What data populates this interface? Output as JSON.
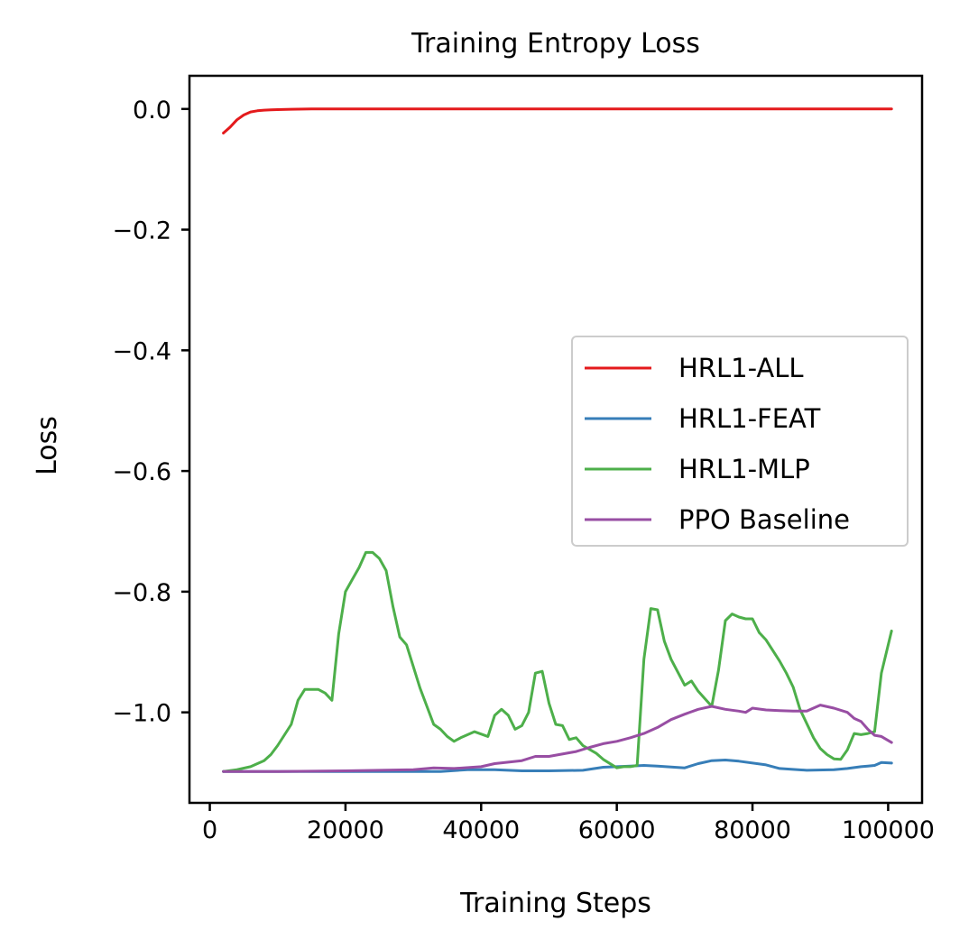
{
  "chart_data": {
    "type": "line",
    "title": "Training Entropy Loss",
    "xlabel": "Training Steps",
    "ylabel": "Loss",
    "xlim": [
      -3000,
      105000
    ],
    "ylim": [
      -1.15,
      0.055
    ],
    "xticks": [
      0,
      20000,
      40000,
      60000,
      80000,
      100000
    ],
    "xtick_labels": [
      "0",
      "20000",
      "40000",
      "60000",
      "80000",
      "100000"
    ],
    "yticks": [
      0.0,
      -0.2,
      -0.4,
      -0.6,
      -0.8,
      -1.0
    ],
    "ytick_labels": [
      "0.0",
      "−0.2",
      "−0.4",
      "−0.6",
      "−0.8",
      "−1.0"
    ],
    "grid": false,
    "legend_position": "center-right",
    "series": [
      {
        "name": "HRL1-ALL",
        "color": "#e41a1c",
        "x": [
          2000,
          3000,
          4000,
          5000,
          6000,
          7000,
          8000,
          9000,
          10000,
          12000,
          15000,
          20000,
          40000,
          60000,
          80000,
          100500
        ],
        "y": [
          -0.04,
          -0.03,
          -0.018,
          -0.01,
          -0.005,
          -0.003,
          -0.002,
          -0.0015,
          -0.001,
          -0.0005,
          0.0,
          0.0,
          0.0,
          0.0,
          0.0,
          0.0
        ]
      },
      {
        "name": "HRL1-FEAT",
        "color": "#377eb8",
        "x": [
          2000,
          10000,
          20000,
          30000,
          34000,
          38000,
          42000,
          46000,
          50000,
          55000,
          58000,
          62000,
          64000,
          66000,
          70000,
          72000,
          74000,
          76000,
          78000,
          82000,
          84000,
          88000,
          92000,
          94000,
          96000,
          97000,
          98000,
          99000,
          100500
        ],
        "y": [
          -1.098,
          -1.098,
          -1.098,
          -1.098,
          -1.098,
          -1.095,
          -1.095,
          -1.097,
          -1.097,
          -1.096,
          -1.091,
          -1.089,
          -1.088,
          -1.089,
          -1.092,
          -1.085,
          -1.08,
          -1.079,
          -1.081,
          -1.087,
          -1.093,
          -1.096,
          -1.095,
          -1.093,
          -1.09,
          -1.089,
          -1.088,
          -1.083,
          -1.084
        ]
      },
      {
        "name": "HRL1-MLP",
        "color": "#4daf4a",
        "x": [
          2000,
          4000,
          6000,
          8000,
          9000,
          10000,
          12000,
          13000,
          14000,
          16000,
          17000,
          18000,
          19000,
          20000,
          21000,
          22000,
          23000,
          24000,
          25000,
          26000,
          27000,
          28000,
          29000,
          31000,
          33000,
          34000,
          35000,
          36000,
          37000,
          39000,
          41000,
          42000,
          43000,
          44000,
          45000,
          46000,
          47000,
          48000,
          49000,
          50000,
          51000,
          52000,
          53000,
          54000,
          55000,
          57000,
          58000,
          60000,
          61000,
          62000,
          63000,
          64000,
          65000,
          66000,
          67000,
          68000,
          70000,
          71000,
          72000,
          74000,
          75000,
          76000,
          77000,
          78000,
          79000,
          80000,
          81000,
          82000,
          84000,
          85000,
          86000,
          87000,
          89000,
          90000,
          91000,
          92000,
          93000,
          94000,
          95000,
          96000,
          97000,
          98000,
          99000,
          100500
        ],
        "y": [
          -1.098,
          -1.095,
          -1.09,
          -1.08,
          -1.07,
          -1.055,
          -1.02,
          -0.98,
          -0.962,
          -0.962,
          -0.968,
          -0.98,
          -0.87,
          -0.8,
          -0.78,
          -0.76,
          -0.735,
          -0.735,
          -0.745,
          -0.765,
          -0.825,
          -0.875,
          -0.888,
          -0.96,
          -1.02,
          -1.028,
          -1.04,
          -1.048,
          -1.042,
          -1.032,
          -1.04,
          -1.005,
          -0.995,
          -1.005,
          -1.028,
          -1.022,
          -1.0,
          -0.935,
          -0.932,
          -0.985,
          -1.02,
          -1.022,
          -1.045,
          -1.042,
          -1.055,
          -1.068,
          -1.078,
          -1.092,
          -1.09,
          -1.09,
          -1.088,
          -0.912,
          -0.828,
          -0.83,
          -0.882,
          -0.912,
          -0.955,
          -0.948,
          -0.965,
          -0.99,
          -0.93,
          -0.848,
          -0.837,
          -0.842,
          -0.845,
          -0.845,
          -0.868,
          -0.88,
          -0.915,
          -0.935,
          -0.958,
          -0.995,
          -1.042,
          -1.06,
          -1.07,
          -1.077,
          -1.078,
          -1.062,
          -1.035,
          -1.037,
          -1.035,
          -1.032,
          -0.935,
          -0.865
        ]
      },
      {
        "name": "PPO Baseline",
        "color": "#984ea3",
        "x": [
          2000,
          10000,
          20000,
          30000,
          33000,
          36000,
          40000,
          42000,
          46000,
          48000,
          50000,
          54000,
          56000,
          58000,
          60000,
          62000,
          64000,
          66000,
          68000,
          70000,
          72000,
          74000,
          76000,
          78000,
          79000,
          80000,
          82000,
          84000,
          86000,
          88000,
          90000,
          92000,
          94000,
          95000,
          96000,
          97000,
          98000,
          99000,
          100500
        ],
        "y": [
          -1.098,
          -1.098,
          -1.097,
          -1.095,
          -1.092,
          -1.093,
          -1.09,
          -1.085,
          -1.08,
          -1.073,
          -1.073,
          -1.065,
          -1.058,
          -1.052,
          -1.048,
          -1.042,
          -1.035,
          -1.025,
          -1.012,
          -1.003,
          -0.995,
          -0.99,
          -0.995,
          -0.998,
          -1.0,
          -0.993,
          -0.996,
          -0.997,
          -0.998,
          -0.998,
          -0.988,
          -0.993,
          -1.0,
          -1.01,
          -1.015,
          -1.028,
          -1.038,
          -1.04,
          -1.05
        ]
      }
    ]
  }
}
